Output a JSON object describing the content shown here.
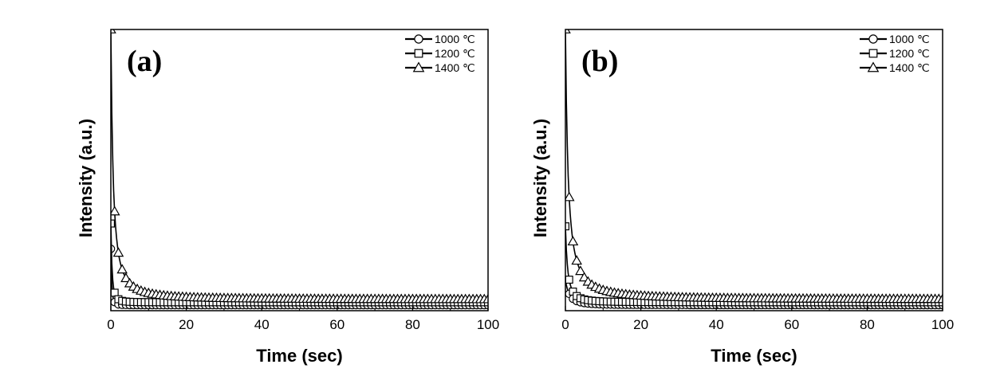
{
  "chart_data": [
    {
      "type": "scatter",
      "panel_label": "(a)",
      "xlabel": "Time (sec)",
      "ylabel": "Intensity (a.u.)",
      "xlim": [
        0,
        100
      ],
      "ylim": [
        0,
        1
      ],
      "x_ticks": [
        "0",
        "20",
        "40",
        "60",
        "80",
        "100"
      ],
      "y_ticks_shown": false,
      "legend_position": "top-right",
      "decay_model": "y(t) = a + b / (1 + t / c)^d",
      "series": [
        {
          "name": "1000 ℃",
          "marker": "circle",
          "color": "#000000",
          "decay": {
            "a": 0.02,
            "b": 0.2,
            "c": 0.6,
            "d": 3.0
          }
        },
        {
          "name": "1200 ℃",
          "marker": "square",
          "color": "#000000",
          "decay": {
            "a": 0.03,
            "b": 0.28,
            "c": 0.8,
            "d": 2.6
          }
        },
        {
          "name": "1400 ℃",
          "marker": "triangle",
          "color": "#000000",
          "decay": {
            "a": 0.04,
            "b": 0.96,
            "c": 0.9,
            "d": 1.5
          }
        }
      ]
    },
    {
      "type": "scatter",
      "panel_label": "(b)",
      "xlabel": "Time (sec)",
      "ylabel": "Intensity (a.u.)",
      "xlim": [
        0,
        100
      ],
      "ylim": [
        0,
        1
      ],
      "x_ticks": [
        "0",
        "20",
        "40",
        "60",
        "80",
        "100"
      ],
      "y_ticks_shown": false,
      "legend_position": "top-right",
      "decay_model": "y(t) = a + b / (1 + t / c)^d",
      "series": [
        {
          "name": "1000 ℃",
          "marker": "circle",
          "color": "#000000",
          "decay": {
            "a": 0.02,
            "b": 0.09,
            "c": 2.0,
            "d": 2.0
          }
        },
        {
          "name": "1200 ℃",
          "marker": "square",
          "color": "#000000",
          "decay": {
            "a": 0.03,
            "b": 0.27,
            "c": 1.2,
            "d": 2.0
          }
        },
        {
          "name": "1400 ℃",
          "marker": "triangle",
          "color": "#000000",
          "decay": {
            "a": 0.04,
            "b": 0.96,
            "c": 1.0,
            "d": 1.4
          }
        }
      ]
    }
  ]
}
